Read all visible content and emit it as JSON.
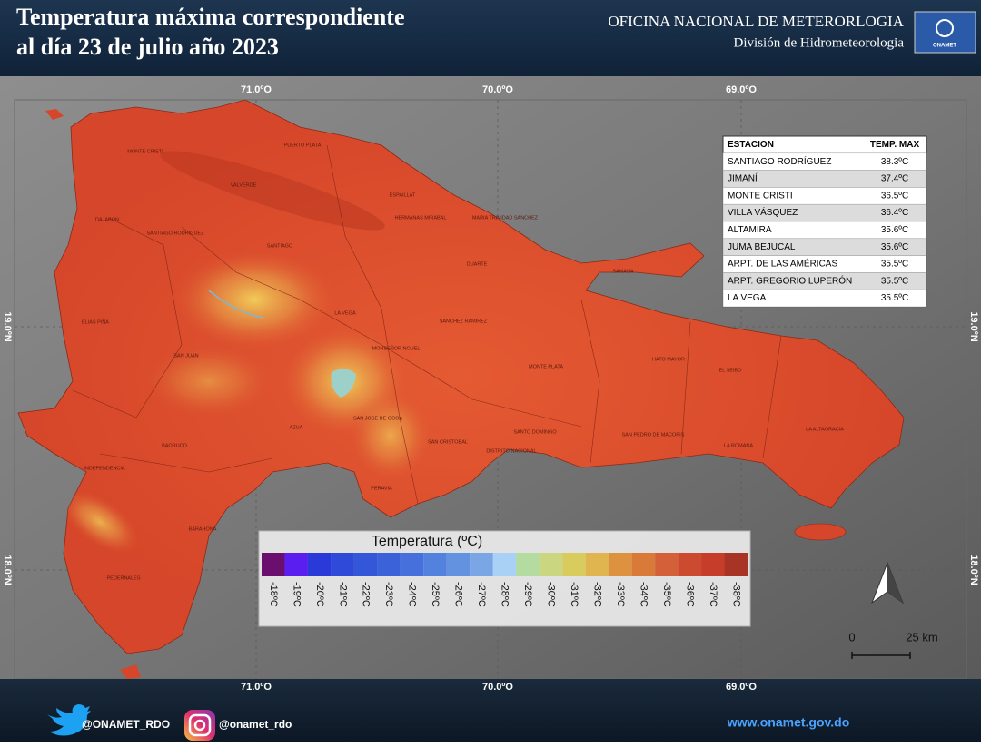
{
  "header": {
    "title_line1": "Temperatura máxima correspondiente",
    "title_line2": "al día 23 de julio año 2023",
    "organization": "OFICINA NACIONAL DE METERORLOGIA",
    "division": "División de Hidrometeorologia",
    "logo_text": "ONAMET"
  },
  "map": {
    "longitude_labels": [
      "71.0ºO",
      "70.0ºO",
      "69.0ºO"
    ],
    "latitude_labels": [
      "19.0ºN",
      "18.0ºN"
    ],
    "regions": [
      "MONTE CRISTI",
      "PUERTO PLATA",
      "VALVERDE",
      "ESPAILLAT",
      "HERMANAS MIRABAL",
      "MARIA TRINIDAD SANCHEZ",
      "DAJABON",
      "SANTIAGO RODRIGUEZ",
      "SANTIAGO",
      "DUARTE",
      "SAMANA",
      "ELIAS PIÑA",
      "LA VEGA",
      "SANCHEZ RAMIREZ",
      "MONSEÑOR NOUEL",
      "SAN JUAN",
      "MONTE PLATA",
      "HATO MAYOR",
      "EL SEIBO",
      "AZUA",
      "SAN JOSE DE OCOA",
      "SANTO DOMINGO",
      "SAN CRISTOBAL",
      "DISTRITO NACIONAL",
      "SAN PEDRO DE MACORIS",
      "LA ROMANA",
      "LA ALTAGRACIA",
      "BAORUCO",
      "INDEPENDENCIA",
      "PERAVIA",
      "BARAHONA",
      "PEDERNALES"
    ],
    "scale": {
      "start": "0",
      "end": "25 km"
    }
  },
  "table": {
    "header": [
      "ESTACION",
      "TEMP. MAX"
    ],
    "rows": [
      [
        "SANTIAGO RODRÍGUEZ",
        "38.3ºC"
      ],
      [
        "JIMANÍ",
        "37.4ºC"
      ],
      [
        "MONTE CRISTI",
        "36.5ºC"
      ],
      [
        "VILLA VÁSQUEZ",
        "36.4ºC"
      ],
      [
        "ALTAMIRA",
        "35.6ºC"
      ],
      [
        "JUMA BEJUCAL",
        "35.6ºC"
      ],
      [
        "ARPT. DE LAS AMÉRICAS",
        "35.5ºC"
      ],
      [
        "ARPT. GREGORIO LUPERÓN",
        "35.5ºC"
      ],
      [
        "LA VEGA",
        "35.5ºC"
      ]
    ]
  },
  "legend": {
    "title": "Temperatura (ºC)",
    "labels": [
      "-18ºC",
      "-19ºC",
      "-20ºC",
      "-21ºC",
      "-22ºC",
      "-23ºC",
      "-24ºC",
      "-25ºC",
      "-26ºC",
      "-27ºC",
      "-28ºC",
      "-29ºC",
      "-30ºC",
      "-31ºC",
      "-32ºC",
      "-33ºC",
      "-34ºC",
      "-35ºC",
      "-36ºC",
      "-37ºC",
      "-38ºC"
    ],
    "colors": [
      "#6a0f6e",
      "#5a1ef0",
      "#2a3ad8",
      "#2f4ad8",
      "#3357d8",
      "#3b62d8",
      "#4670dc",
      "#5282de",
      "#6393e0",
      "#7aa6e6",
      "#a9d0f5",
      "#b4dba0",
      "#cad680",
      "#d9cc5e",
      "#e0b44e",
      "#dd9240",
      "#d97a38",
      "#d4603a",
      "#cc4a30",
      "#c63e2a",
      "#a83426"
    ]
  },
  "footer": {
    "twitter": "@ONAMET_RDO",
    "instagram": "@onamet_rdo",
    "website": "www.onamet.gov.do"
  }
}
